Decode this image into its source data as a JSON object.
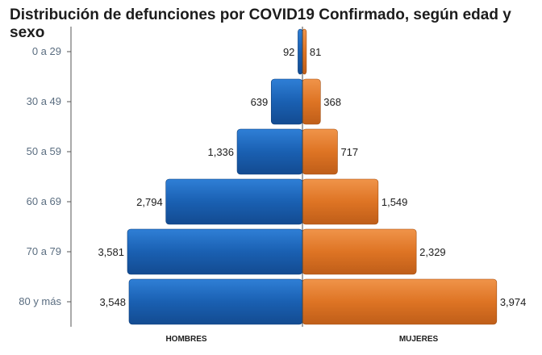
{
  "chart_data": {
    "type": "bar",
    "orientation": "horizontal",
    "title": "Distribución de defunciones por COVID19 Confirmado, según edad y sexo",
    "categories": [
      "0 a 29",
      "30 a 49",
      "50 a 59",
      "60 a 69",
      "70 a 79",
      "80 y más"
    ],
    "series": [
      {
        "name": "HOMBRES",
        "values": [
          92,
          639,
          1336,
          2794,
          3581,
          3548
        ],
        "labels": [
          "92",
          "639",
          "1,336",
          "2,794",
          "3,581",
          "3,548"
        ],
        "color": "#1a60b2"
      },
      {
        "name": "MUJERES",
        "values": [
          81,
          368,
          717,
          1549,
          2329,
          3974
        ],
        "labels": [
          "81",
          "368",
          "717",
          "1,549",
          "2,329",
          "3,974"
        ],
        "color": "#de7424"
      }
    ],
    "legend": "bottom",
    "grid": false
  }
}
